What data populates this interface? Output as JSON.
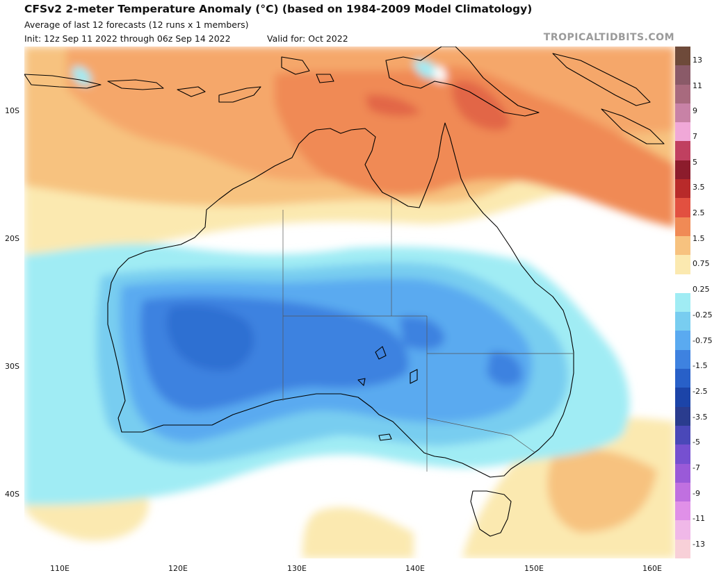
{
  "header": {
    "title": "CFSv2 2-meter Temperature Anomaly (°C) (based on 1984-2009 Model Climatology)",
    "subtitle": "Average of last 12 forecasts (12 runs x 1 members)",
    "init": "Init: 12z Sep 11 2022 through 06z Sep 14 2022",
    "valid": "Valid for: Oct 2022",
    "site": "TROPICALTIDBITS.COM"
  },
  "map": {
    "lat_labels": [
      "10S",
      "20S",
      "30S",
      "40S"
    ],
    "lon_labels": [
      "110E",
      "120E",
      "130E",
      "140E",
      "150E",
      "160E"
    ],
    "colors": {
      "land_line": "#000000",
      "border_line": "#555555"
    }
  },
  "colorbar": {
    "labels": [
      "13",
      "11",
      "9",
      "7",
      "5",
      "3.5",
      "2.5",
      "1.5",
      "0.75",
      "0.25",
      "-0.25",
      "-0.75",
      "-1.5",
      "-2.5",
      "-3.5",
      "-5",
      "-7",
      "-9",
      "-11",
      "-13"
    ],
    "colors": [
      "#6e4a3a",
      "#8a5a68",
      "#a86a7e",
      "#c882a6",
      "#f0a8d8",
      "#c04060",
      "#8c1c2c",
      "#b82a2a",
      "#e25040",
      "#f08a55",
      "#f7c27f",
      "#fbe9b0",
      "#ffffff",
      "#a0ecf4",
      "#78cdf0",
      "#5aaaf0",
      "#3e82e0",
      "#2860c8",
      "#1c44a8",
      "#2a3c8e",
      "#4a48b8",
      "#7650d0",
      "#9a5ad8",
      "#c070e0",
      "#e090e8",
      "#f0b8e8",
      "#f8d0d8"
    ]
  }
}
